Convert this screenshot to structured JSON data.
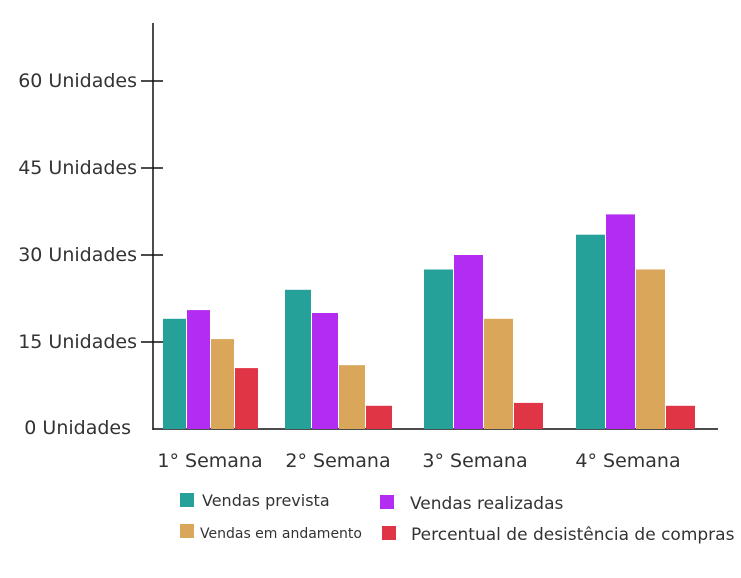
{
  "chart_data": {
    "type": "bar",
    "categories": [
      "1° Semana",
      "2° Semana",
      "3° Semana",
      "4° Semana"
    ],
    "yticks": [
      {
        "value": 0,
        "label": "0 Unidades"
      },
      {
        "value": 15,
        "label": "15 Unidades"
      },
      {
        "value": 30,
        "label": "30 Unidades"
      },
      {
        "value": 45,
        "label": "45 Unidades"
      },
      {
        "value": 60,
        "label": "60 Unidades"
      }
    ],
    "ylim": [
      0,
      70
    ],
    "grid": false,
    "legend_position": "bottom",
    "series": [
      {
        "name": "Vendas prevista",
        "color": "#26a19a",
        "values": [
          19,
          24,
          27.5,
          33.5
        ]
      },
      {
        "name": "Vendas realizadas",
        "color": "#b22cf2",
        "values": [
          20.5,
          20,
          30,
          37
        ]
      },
      {
        "name": "Vendas em andamento",
        "color": "#d9a65a",
        "values": [
          15.5,
          11,
          19,
          27.5
        ]
      },
      {
        "name": "Percentual de desistência de compras",
        "color": "#df3545",
        "values": [
          10.5,
          4,
          4.5,
          4
        ]
      }
    ]
  }
}
